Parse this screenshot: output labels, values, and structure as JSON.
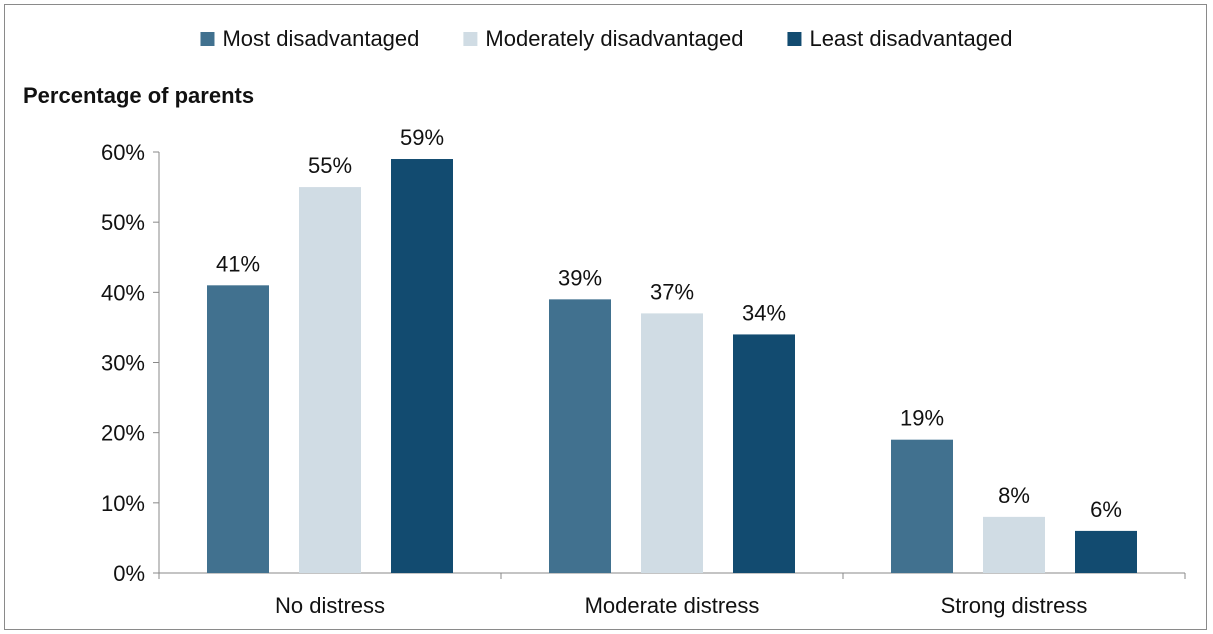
{
  "chart_data": {
    "type": "bar",
    "title": "",
    "ylabel": "Percentage of parents",
    "xlabel": "",
    "ylim": [
      0,
      60
    ],
    "yticks": [
      0,
      10,
      20,
      30,
      40,
      50,
      60
    ],
    "ytick_labels": [
      "0%",
      "10%",
      "20%",
      "30%",
      "40%",
      "50%",
      "60%"
    ],
    "categories": [
      "No distress",
      "Moderate distress",
      "Strong distress"
    ],
    "series": [
      {
        "name": "Most disadvantaged",
        "color": "#41718f",
        "values": [
          41,
          39,
          19
        ],
        "labels": [
          "41%",
          "39%",
          "19%"
        ]
      },
      {
        "name": "Moderately disadvantaged",
        "color": "#d0dce4",
        "values": [
          55,
          37,
          8
        ],
        "labels": [
          "55%",
          "37%",
          "8%"
        ]
      },
      {
        "name": "Least disadvantaged",
        "color": "#124b70",
        "values": [
          59,
          34,
          6
        ],
        "labels": [
          "59%",
          "34%",
          "6%"
        ]
      }
    ],
    "legend_position": "top",
    "grid": false
  }
}
